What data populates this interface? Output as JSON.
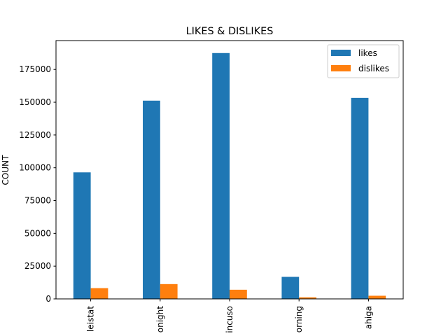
{
  "chart_data": {
    "type": "bar",
    "title": "LIKES & DISLIKES",
    "xlabel": "",
    "ylabel": "COUNT",
    "categories": [
      "leistat",
      "onight",
      "incuso",
      "orning",
      "ahiga"
    ],
    "series": [
      {
        "name": "likes",
        "color": "#1f77b4",
        "values": [
          96500,
          151200,
          187500,
          16800,
          153300
        ]
      },
      {
        "name": "dislikes",
        "color": "#ff7f0e",
        "values": [
          8200,
          11300,
          7000,
          1200,
          2400
        ]
      }
    ],
    "ylim": [
      0,
      197000
    ],
    "yticks": [
      0,
      25000,
      50000,
      75000,
      100000,
      125000,
      150000,
      175000
    ],
    "ytick_labels": [
      "0",
      "25000",
      "50000",
      "75000",
      "100000",
      "125000",
      "150000",
      "175000"
    ],
    "grid": false,
    "legend_position": "top-right"
  }
}
